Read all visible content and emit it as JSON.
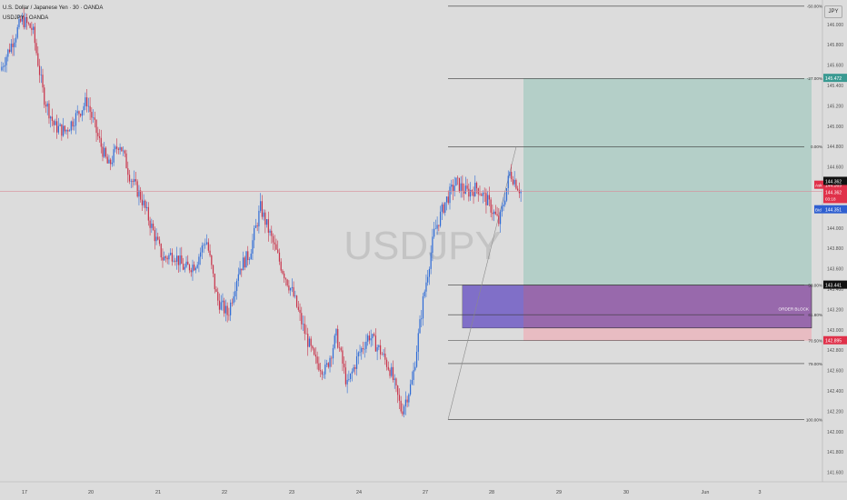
{
  "header": {
    "symbol_line": "U.S. Dollar / Japanese Yen · 30 · OANDA",
    "subline": "USDJPY · OANDA",
    "currency": "JPY"
  },
  "watermark": "USDJPY",
  "colors": {
    "background": "#dcdcdc",
    "up_candle": "#2e6bd6",
    "down_candle": "#c8334a",
    "profit_zone": "#b4cfc8",
    "loss_zone": "#e8bcc2",
    "order_block_fill": "#8a5aa8",
    "order_block_left_fill": "#7d6fcb",
    "price_line": "#d98c97",
    "ask": "#e0314a",
    "bid": "#2f5fd0",
    "target_label": "#3a9a92",
    "last_price": "#111111"
  },
  "chart_data": {
    "type": "candlestick",
    "x_axis_labels": [
      "17",
      "20",
      "21",
      "22",
      "23",
      "24",
      "27",
      "28",
      "29",
      "30",
      "Jun",
      "3"
    ],
    "y_ticks": [
      "146.000",
      "145.800",
      "145.600",
      "145.400",
      "145.200",
      "145.000",
      "144.800",
      "144.600",
      "144.400",
      "144.200",
      "144.000",
      "143.800",
      "143.600",
      "143.400",
      "143.200",
      "143.000",
      "142.800",
      "142.600",
      "142.400",
      "142.200",
      "142.000",
      "141.800",
      "141.600"
    ],
    "ylim": [
      141.5,
      146.15
    ],
    "grid": false,
    "price_path": [
      {
        "x": "17",
        "y": 145.55
      },
      {
        "x": "",
        "y": 145.8
      },
      {
        "x": "",
        "y": 146.05
      },
      {
        "x": "",
        "y": 145.95
      },
      {
        "x": "",
        "y": 145.3
      },
      {
        "x": "",
        "y": 145.0
      },
      {
        "x": "20",
        "y": 144.95
      },
      {
        "x": "",
        "y": 145.1
      },
      {
        "x": "",
        "y": 145.25
      },
      {
        "x": "",
        "y": 144.9
      },
      {
        "x": "",
        "y": 144.6
      },
      {
        "x": "",
        "y": 144.85
      },
      {
        "x": "21",
        "y": 144.5
      },
      {
        "x": "",
        "y": 144.3
      },
      {
        "x": "",
        "y": 144.0
      },
      {
        "x": "",
        "y": 143.7
      },
      {
        "x": "",
        "y": 143.75
      },
      {
        "x": "",
        "y": 143.6
      },
      {
        "x": "22",
        "y": 143.65
      },
      {
        "x": "",
        "y": 143.9
      },
      {
        "x": "",
        "y": 143.3
      },
      {
        "x": "",
        "y": 143.15
      },
      {
        "x": "",
        "y": 143.6
      },
      {
        "x": "",
        "y": 143.75
      },
      {
        "x": "23",
        "y": 144.2
      },
      {
        "x": "",
        "y": 143.9
      },
      {
        "x": "",
        "y": 143.6
      },
      {
        "x": "",
        "y": 143.35
      },
      {
        "x": "",
        "y": 143.0
      },
      {
        "x": "",
        "y": 142.7
      },
      {
        "x": "24",
        "y": 142.6
      },
      {
        "x": "",
        "y": 142.95
      },
      {
        "x": "",
        "y": 142.45
      },
      {
        "x": "",
        "y": 142.75
      },
      {
        "x": "",
        "y": 142.95
      },
      {
        "x": "",
        "y": 142.8
      },
      {
        "x": "27",
        "y": 142.6
      },
      {
        "x": "",
        "y": 142.2
      },
      {
        "x": "",
        "y": 142.5
      },
      {
        "x": "",
        "y": 143.3
      },
      {
        "x": "",
        "y": 143.95
      },
      {
        "x": "",
        "y": 144.25
      },
      {
        "x": "28",
        "y": 144.45
      },
      {
        "x": "",
        "y": 144.35
      },
      {
        "x": "",
        "y": 144.4
      },
      {
        "x": "",
        "y": 144.25
      },
      {
        "x": "",
        "y": 144.05
      },
      {
        "x": "",
        "y": 144.55
      },
      {
        "x": "",
        "y": 144.36
      }
    ],
    "fib_levels": [
      {
        "label": "-50.00%",
        "price": 146.18
      },
      {
        "label": "-27.00%",
        "price": 145.47
      },
      {
        "label": "0.00%",
        "price": 144.8
      },
      {
        "label": "50.00%",
        "price": 143.441
      },
      {
        "label": "61.80%",
        "price": 143.15
      },
      {
        "label": "70.50%",
        "price": 142.895
      },
      {
        "label": "79.00%",
        "price": 142.67
      },
      {
        "label": "100.00%",
        "price": 142.12
      }
    ],
    "fib_start": "142.12",
    "fib_end": "144.80",
    "order_block": {
      "label": "ORDER BLOCK",
      "top": 143.441,
      "bottom": 143.02
    },
    "position": {
      "target": 145.472,
      "entry": 143.441,
      "stop": 142.895
    },
    "price_labels": {
      "target": "145.472",
      "ask": "144.369",
      "last": "144.362",
      "last_alt": "144.362",
      "countdown": "03:18",
      "bid": "144.351",
      "entry": "143.441",
      "stop": "142.895"
    },
    "tags": {
      "ask": "Ask",
      "bid": "Bid"
    }
  }
}
